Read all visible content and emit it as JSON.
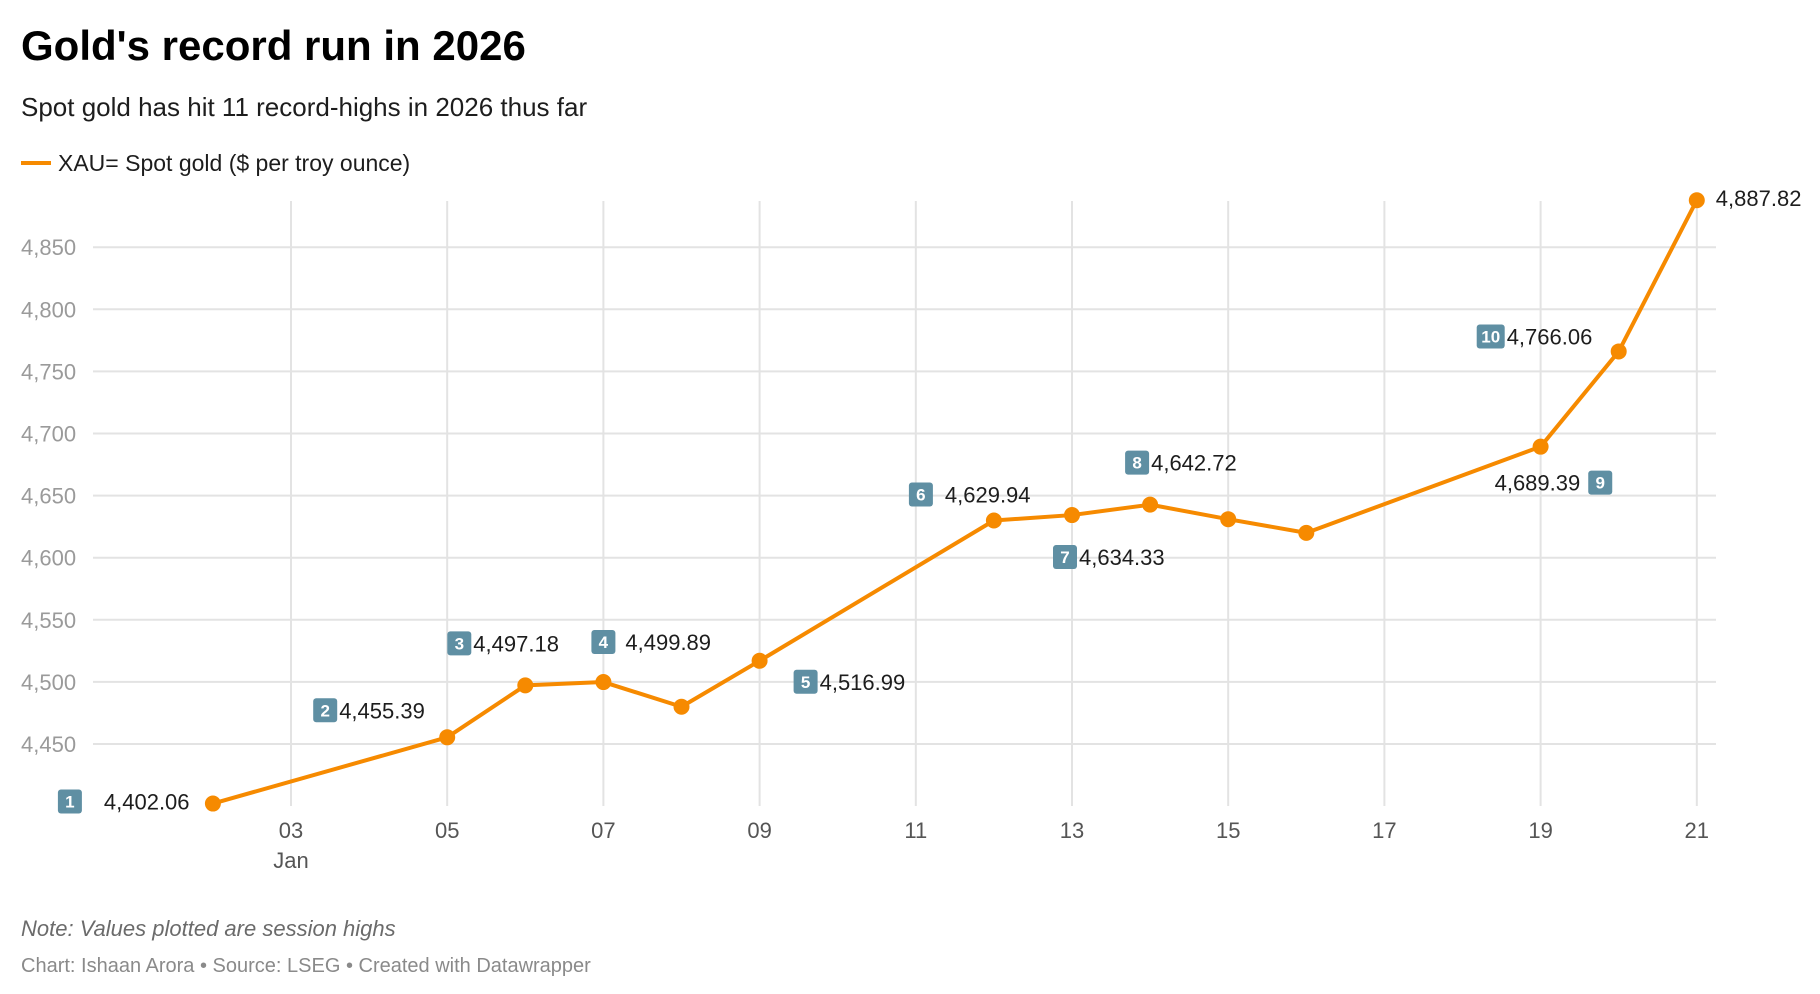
{
  "title": "Gold's record run in 2026",
  "subtitle": "Spot gold has hit 11 record-highs in 2026 thus far",
  "note": "Note: Values plotted are session highs",
  "credit": "Chart: Ishaan Arora • Source: LSEG • Created with Datawrapper",
  "chart_data": {
    "type": "line",
    "title": "Gold's record run in 2026",
    "xlabel": "",
    "ylabel": "",
    "series": [
      {
        "name": "XAU= Spot gold ($ per troy ounce)",
        "color": "#f68a00",
        "x": [
          "2026-01-02",
          "2026-01-05",
          "2026-01-06",
          "2026-01-07",
          "2026-01-08",
          "2026-01-09",
          "2026-01-12",
          "2026-01-13",
          "2026-01-14",
          "2026-01-15",
          "2026-01-16",
          "2026-01-19",
          "2026-01-20",
          "2026-01-21"
        ],
        "values": [
          4402.06,
          4455.39,
          4497.18,
          4499.89,
          4480,
          4516.99,
          4629.94,
          4634.33,
          4642.72,
          4631,
          4620,
          4689.39,
          4766.06,
          4887.82
        ]
      }
    ],
    "annotations": [
      {
        "day": 2,
        "record": "1",
        "text": "4,402.06"
      },
      {
        "day": 5,
        "record": "2",
        "text": "4,455.39"
      },
      {
        "day": 6,
        "record": "3",
        "text": "4,497.18"
      },
      {
        "day": 7,
        "record": "4",
        "text": "4,499.89"
      },
      {
        "day": 9,
        "record": "5",
        "text": "4,516.99"
      },
      {
        "day": 12,
        "record": "6",
        "text": "4,629.94"
      },
      {
        "day": 13,
        "record": "7",
        "text": "4,634.33"
      },
      {
        "day": 14,
        "record": "8",
        "text": "4,642.72"
      },
      {
        "day": 19,
        "record": "9",
        "text": "4,689.39"
      },
      {
        "day": 20,
        "record": "10",
        "text": "4,766.06"
      },
      {
        "day": 21,
        "record": "",
        "text": "4,887.82"
      }
    ],
    "record_badge_color": "#5f8fa3",
    "ylim": [
      4400,
      4880
    ],
    "yticks": [
      "4,450",
      "4,500",
      "4,550",
      "4,600",
      "4,650",
      "4,700",
      "4,750",
      "4,800",
      "4,850"
    ],
    "ytick_values": [
      4450,
      4500,
      4550,
      4600,
      4650,
      4700,
      4750,
      4800,
      4850
    ],
    "xticks": [
      "03",
      "05",
      "07",
      "09",
      "11",
      "13",
      "15",
      "17",
      "19",
      "21"
    ],
    "xtick_days": [
      3,
      5,
      7,
      9,
      11,
      13,
      15,
      17,
      19,
      21
    ],
    "xtick_month": "Jan",
    "grid": true,
    "legend": "top-left"
  }
}
